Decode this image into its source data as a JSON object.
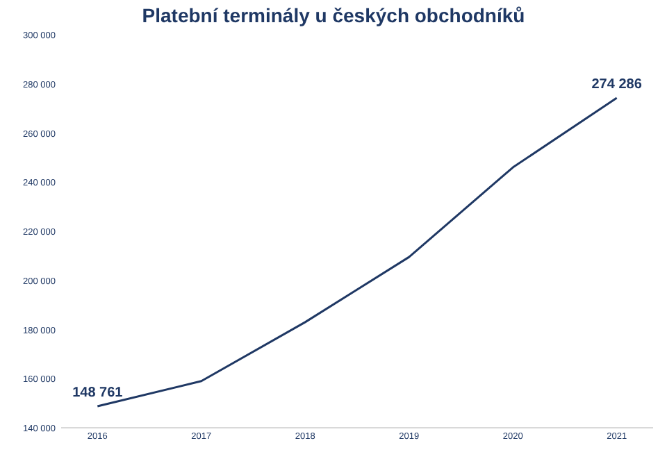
{
  "chart_data": {
    "type": "line",
    "title": "Platební terminály u českých obchodníků",
    "categories": [
      "2016",
      "2017",
      "2018",
      "2019",
      "2020",
      "2021"
    ],
    "series": [
      {
        "color": "#1f3864",
        "values": [
          148761,
          159000,
          183000,
          209500,
          246000,
          274286
        ]
      }
    ],
    "value_labels": [
      "148 761",
      null,
      null,
      null,
      null,
      "274 286"
    ],
    "ylim": [
      140000,
      300000
    ],
    "yticks": [
      {
        "value": 140000,
        "label": "140 000"
      },
      {
        "value": 160000,
        "label": "160 000"
      },
      {
        "value": 180000,
        "label": "180 000"
      },
      {
        "value": 200000,
        "label": "200 000"
      },
      {
        "value": 220000,
        "label": "220 000"
      },
      {
        "value": 240000,
        "label": "240 000"
      },
      {
        "value": 260000,
        "label": "260 000"
      },
      {
        "value": 280000,
        "label": "280 000"
      },
      {
        "value": 300000,
        "label": "300 000"
      }
    ],
    "grid": false,
    "marker": "none",
    "line_style": "solid"
  }
}
